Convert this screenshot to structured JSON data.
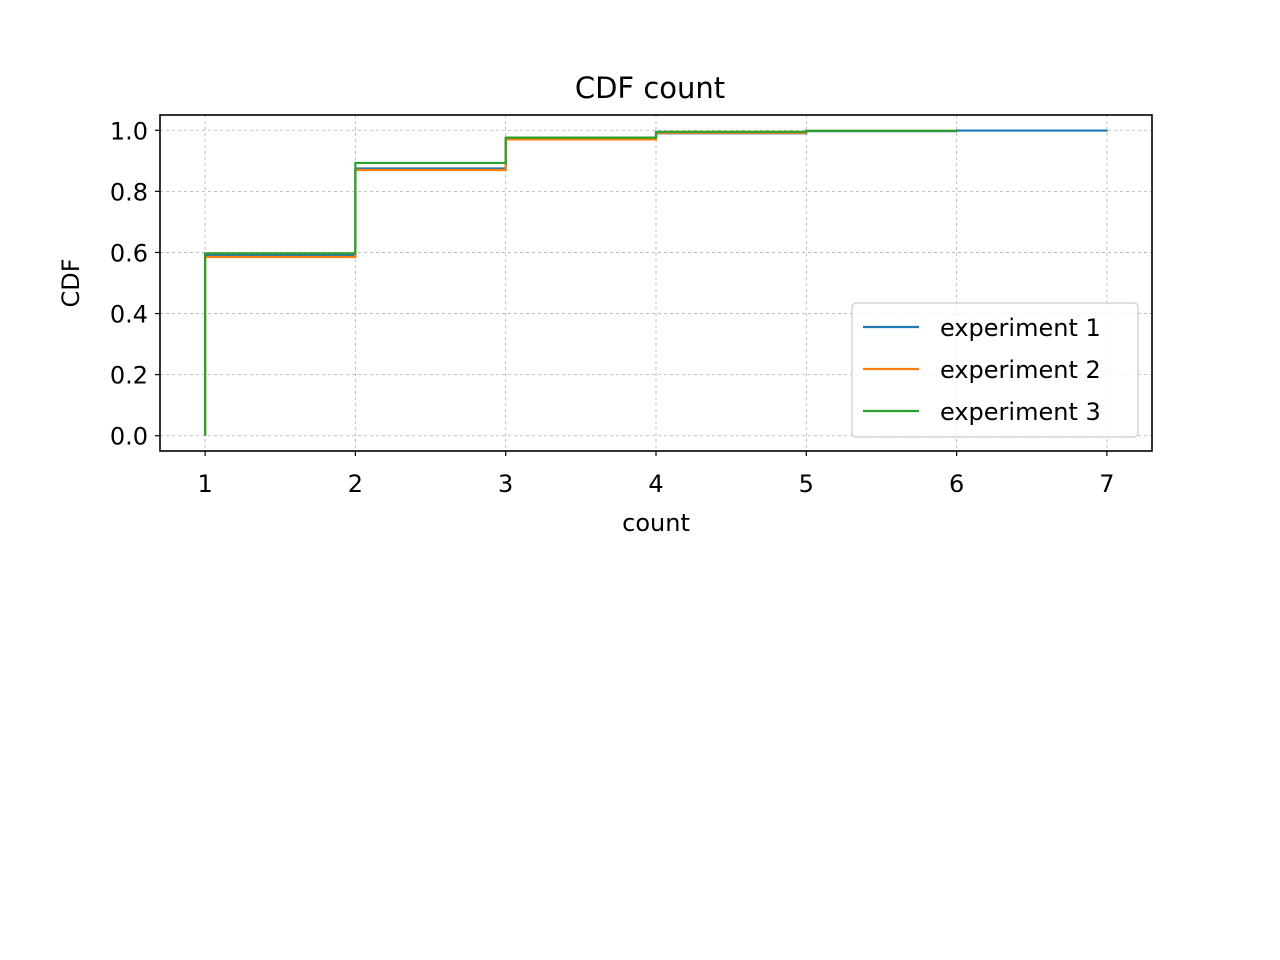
{
  "chart_data": {
    "type": "line",
    "title": "CDF count",
    "xlabel": "count",
    "ylabel": "CDF",
    "xlim": [
      0.7,
      7.3
    ],
    "ylim": [
      -0.05,
      1.05
    ],
    "xticks": [
      1,
      2,
      3,
      4,
      5,
      6,
      7
    ],
    "yticks": [
      0.0,
      0.2,
      0.4,
      0.6,
      0.8,
      1.0
    ],
    "grid": true,
    "legend_position": "lower right",
    "step": "post",
    "series": [
      {
        "name": "experiment 1",
        "color": "#1f77b4",
        "x": [
          1,
          1,
          2,
          3,
          4,
          5,
          6,
          7
        ],
        "y": [
          0.0,
          0.59,
          0.875,
          0.97,
          0.99,
          0.997,
          0.999,
          1.0
        ]
      },
      {
        "name": "experiment 2",
        "color": "#ff7f0e",
        "x": [
          1,
          1,
          2,
          3,
          4,
          5,
          6
        ],
        "y": [
          0.0,
          0.585,
          0.87,
          0.97,
          0.992,
          0.998,
          1.0
        ]
      },
      {
        "name": "experiment 3",
        "color": "#2ca02c",
        "x": [
          1,
          1,
          2,
          3,
          4,
          5,
          6
        ],
        "y": [
          0.0,
          0.597,
          0.893,
          0.976,
          0.995,
          0.998,
          1.0
        ]
      }
    ]
  }
}
